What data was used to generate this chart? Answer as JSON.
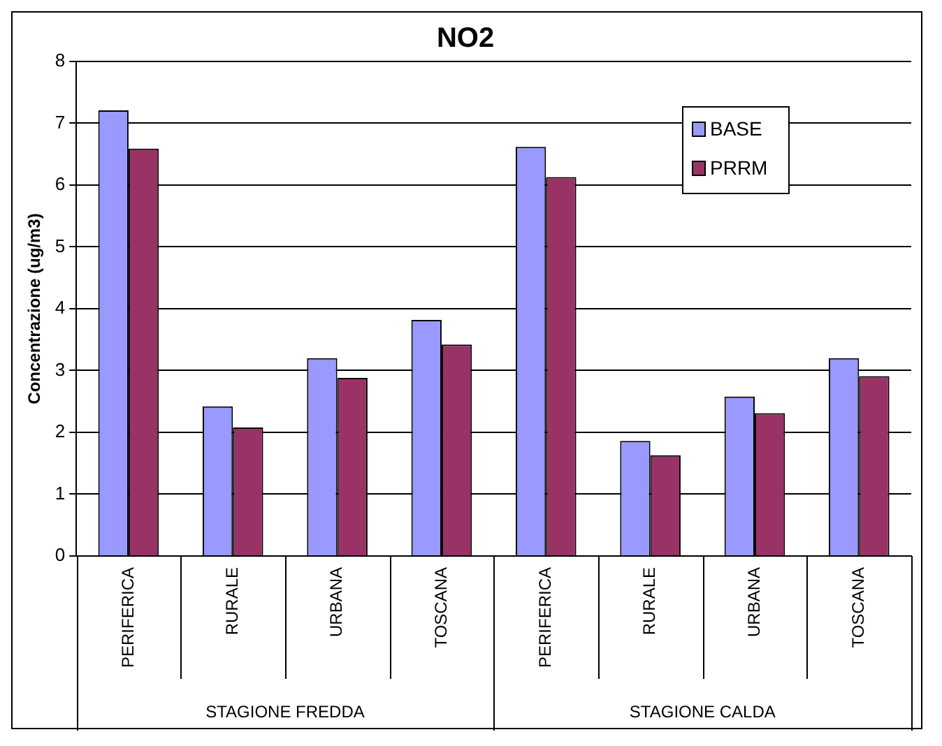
{
  "chart_data": {
    "type": "bar",
    "title": "NO2",
    "ylabel": "Concentrazione (ug/m3)",
    "categories": [
      "PERIFERICA",
      "RURALE",
      "URBANA",
      "TOSCANA",
      "PERIFERICA",
      "RURALE",
      "URBANA",
      "TOSCANA"
    ],
    "annotations": [
      "STAGIONE FREDDA",
      "STAGIONE CALDA"
    ],
    "series": [
      {
        "name": "BASE",
        "color": "#9999ff",
        "values": [
          7.21,
          2.42,
          3.2,
          3.82,
          6.62,
          1.86,
          2.58,
          3.2
        ]
      },
      {
        "name": "PRRM",
        "color": "#993366",
        "values": [
          6.59,
          2.08,
          2.88,
          3.42,
          6.13,
          1.63,
          2.31,
          2.91
        ]
      }
    ],
    "ylim": [
      0,
      8
    ],
    "yticks": [
      0,
      1,
      2,
      3,
      4,
      5,
      6,
      7,
      8
    ],
    "grid": "y",
    "legend": "top right"
  }
}
